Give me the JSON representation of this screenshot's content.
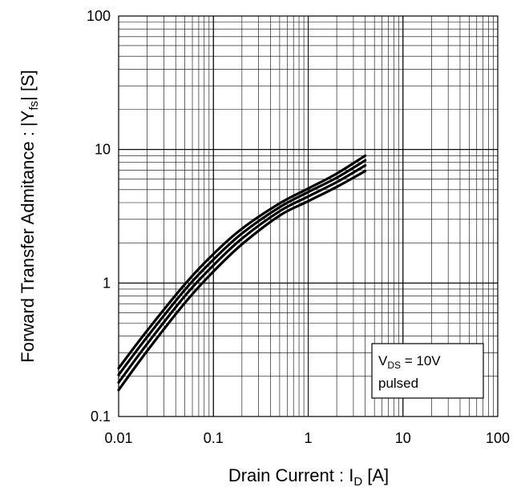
{
  "chart_data": {
    "type": "line",
    "x_scale": "log",
    "y_scale": "log",
    "xlim": [
      0.01,
      100
    ],
    "ylim": [
      0.1,
      100
    ],
    "grid": true,
    "x_ticks": [
      "0.01",
      "0.1",
      "1",
      "10",
      "100"
    ],
    "y_ticks": [
      "0.1",
      "1",
      "10",
      "100"
    ],
    "xlabel": {
      "main": "Drain Current : I",
      "sub": "D",
      "unit": " [A]"
    },
    "ylabel": {
      "pre": "Forward Transfer Admitance : |Y",
      "sub": "fs",
      "post": "| [S]"
    },
    "annotation": {
      "line1_main": "V",
      "line1_sub": "DS",
      "line1_rest": " = 10V",
      "line2": "pulsed",
      "placement": "bottom-right"
    },
    "series": [
      {
        "x": [
          0.01,
          0.02,
          0.05,
          0.1,
          0.2,
          0.5,
          1,
          2,
          4
        ],
        "y": [
          0.23,
          0.44,
          0.98,
          1.65,
          2.55,
          3.95,
          5.1,
          6.6,
          9.0
        ]
      },
      {
        "x": [
          0.01,
          0.02,
          0.05,
          0.1,
          0.2,
          0.5,
          1,
          2,
          4
        ],
        "y": [
          0.205,
          0.395,
          0.89,
          1.5,
          2.35,
          3.7,
          4.8,
          6.15,
          8.3
        ]
      },
      {
        "x": [
          0.01,
          0.02,
          0.05,
          0.1,
          0.2,
          0.5,
          1,
          2,
          4
        ],
        "y": [
          0.18,
          0.35,
          0.8,
          1.36,
          2.15,
          3.45,
          4.45,
          5.7,
          7.6
        ]
      },
      {
        "x": [
          0.01,
          0.02,
          0.05,
          0.1,
          0.2,
          0.5,
          1,
          2,
          4
        ],
        "y": [
          0.158,
          0.31,
          0.71,
          1.22,
          1.95,
          3.2,
          4.1,
          5.25,
          6.9
        ]
      }
    ]
  }
}
